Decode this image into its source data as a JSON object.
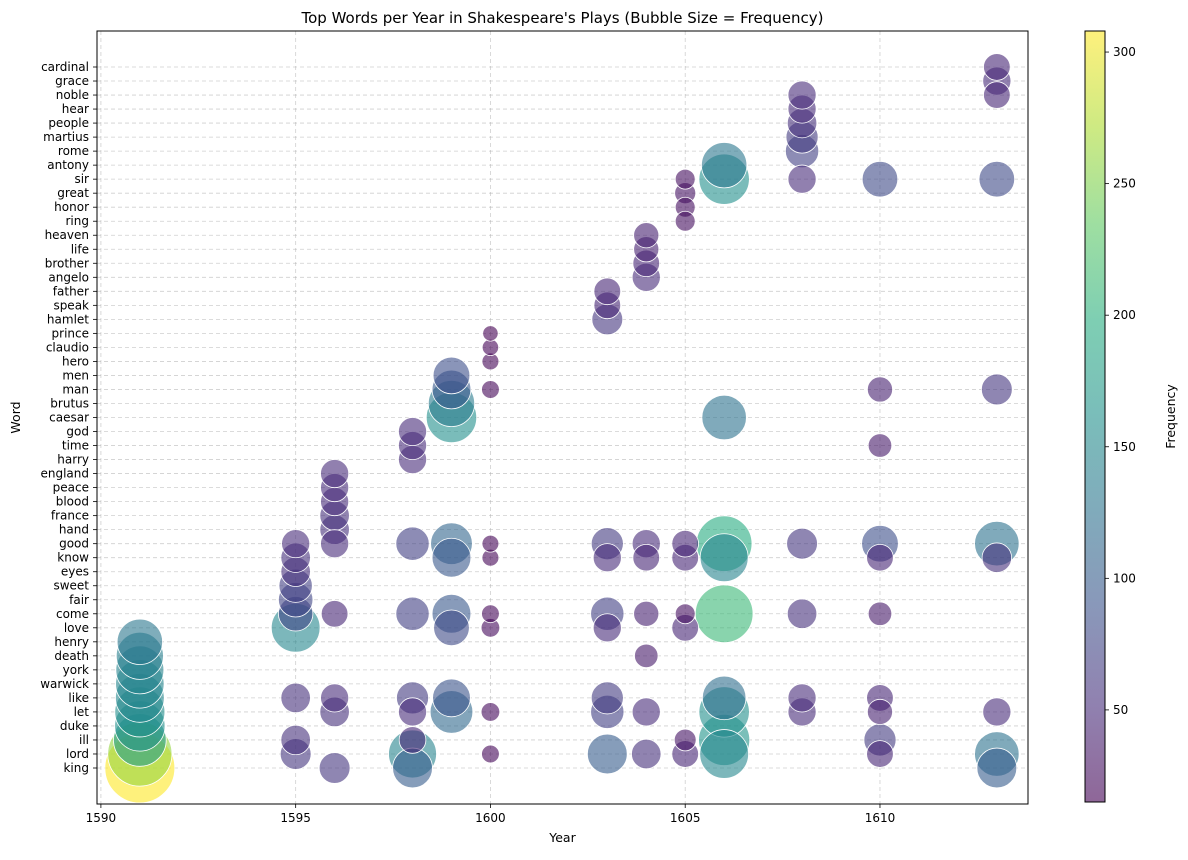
{
  "chart_data": {
    "type": "scatter",
    "title": "Top Words per Year in Shakespeare's Plays (Bubble Size = Frequency)",
    "xlabel": "Year",
    "ylabel": "Word",
    "xlim": [
      1589.9,
      1613.8
    ],
    "x_ticks": [
      "1590",
      "1595",
      "1600",
      "1605",
      "1610"
    ],
    "x_tick_values": [
      1590,
      1595,
      1600,
      1605,
      1610
    ],
    "categories": [
      "king",
      "lord",
      "ill",
      "duke",
      "let",
      "like",
      "warwick",
      "york",
      "death",
      "henry",
      "love",
      "come",
      "fair",
      "sweet",
      "eyes",
      "know",
      "good",
      "hand",
      "france",
      "blood",
      "peace",
      "england",
      "harry",
      "time",
      "god",
      "caesar",
      "brutus",
      "man",
      "men",
      "hero",
      "claudio",
      "prince",
      "hamlet",
      "speak",
      "father",
      "angelo",
      "brother",
      "life",
      "heaven",
      "ring",
      "honor",
      "great",
      "sir",
      "antony",
      "rome",
      "martius",
      "people",
      "hear",
      "noble",
      "grace",
      "cardinal"
    ],
    "colorbar": {
      "label": "Frequency",
      "min": 15,
      "max": 308,
      "ticks": [
        "50",
        "100",
        "150",
        "200",
        "250",
        "300"
      ],
      "tick_values": [
        50,
        100,
        150,
        200,
        250,
        300
      ],
      "colormap": "viridis"
    },
    "grid": true,
    "points": [
      {
        "year": 1591,
        "word": "king",
        "freq": 308
      },
      {
        "year": 1591,
        "word": "lord",
        "freq": 260
      },
      {
        "year": 1591,
        "word": "ill",
        "freq": 175
      },
      {
        "year": 1591,
        "word": "duke",
        "freq": 160
      },
      {
        "year": 1591,
        "word": "let",
        "freq": 158
      },
      {
        "year": 1591,
        "word": "like",
        "freq": 150
      },
      {
        "year": 1591,
        "word": "warwick",
        "freq": 148
      },
      {
        "year": 1591,
        "word": "york",
        "freq": 145
      },
      {
        "year": 1591,
        "word": "death",
        "freq": 140
      },
      {
        "year": 1591,
        "word": "henry",
        "freq": 130
      },
      {
        "year": 1595,
        "word": "lord",
        "freq": 60
      },
      {
        "year": 1595,
        "word": "ill",
        "freq": 55
      },
      {
        "year": 1595,
        "word": "like",
        "freq": 55
      },
      {
        "year": 1595,
        "word": "love",
        "freq": 150
      },
      {
        "year": 1595,
        "word": "come",
        "freq": 75
      },
      {
        "year": 1595,
        "word": "fair",
        "freq": 75
      },
      {
        "year": 1595,
        "word": "sweet",
        "freq": 70
      },
      {
        "year": 1595,
        "word": "eyes",
        "freq": 55
      },
      {
        "year": 1595,
        "word": "know",
        "freq": 55
      },
      {
        "year": 1595,
        "word": "good",
        "freq": 50
      },
      {
        "year": 1596,
        "word": "king",
        "freq": 60
      },
      {
        "year": 1596,
        "word": "let",
        "freq": 55
      },
      {
        "year": 1596,
        "word": "like",
        "freq": 50
      },
      {
        "year": 1596,
        "word": "come",
        "freq": 45
      },
      {
        "year": 1596,
        "word": "good",
        "freq": 50
      },
      {
        "year": 1596,
        "word": "hand",
        "freq": 55
      },
      {
        "year": 1596,
        "word": "france",
        "freq": 55
      },
      {
        "year": 1596,
        "word": "blood",
        "freq": 50
      },
      {
        "year": 1596,
        "word": "peace",
        "freq": 50
      },
      {
        "year": 1596,
        "word": "england",
        "freq": 50
      },
      {
        "year": 1598,
        "word": "king",
        "freq": 100
      },
      {
        "year": 1598,
        "word": "lord",
        "freq": 145
      },
      {
        "year": 1598,
        "word": "ill",
        "freq": 45
      },
      {
        "year": 1598,
        "word": "let",
        "freq": 50
      },
      {
        "year": 1598,
        "word": "like",
        "freq": 65
      },
      {
        "year": 1598,
        "word": "come",
        "freq": 70
      },
      {
        "year": 1598,
        "word": "good",
        "freq": 70
      },
      {
        "year": 1598,
        "word": "harry",
        "freq": 50
      },
      {
        "year": 1598,
        "word": "time",
        "freq": 50
      },
      {
        "year": 1598,
        "word": "god",
        "freq": 50
      },
      {
        "year": 1599,
        "word": "let",
        "freq": 115
      },
      {
        "year": 1599,
        "word": "like",
        "freq": 90
      },
      {
        "year": 1599,
        "word": "love",
        "freq": 80
      },
      {
        "year": 1599,
        "word": "come",
        "freq": 95
      },
      {
        "year": 1599,
        "word": "know",
        "freq": 95
      },
      {
        "year": 1599,
        "word": "good",
        "freq": 110
      },
      {
        "year": 1599,
        "word": "caesar",
        "freq": 160
      },
      {
        "year": 1599,
        "word": "brutus",
        "freq": 135
      },
      {
        "year": 1599,
        "word": "man",
        "freq": 95
      },
      {
        "year": 1599,
        "word": "men",
        "freq": 85
      },
      {
        "year": 1600,
        "word": "lord",
        "freq": 20
      },
      {
        "year": 1600,
        "word": "let",
        "freq": 22
      },
      {
        "year": 1600,
        "word": "love",
        "freq": 22
      },
      {
        "year": 1600,
        "word": "come",
        "freq": 20
      },
      {
        "year": 1600,
        "word": "know",
        "freq": 18
      },
      {
        "year": 1600,
        "word": "good",
        "freq": 18
      },
      {
        "year": 1600,
        "word": "man",
        "freq": 20
      },
      {
        "year": 1600,
        "word": "hero",
        "freq": 18
      },
      {
        "year": 1600,
        "word": "claudio",
        "freq": 17
      },
      {
        "year": 1600,
        "word": "prince",
        "freq": 15
      },
      {
        "year": 1603,
        "word": "lord",
        "freq": 100
      },
      {
        "year": 1603,
        "word": "let",
        "freq": 70
      },
      {
        "year": 1603,
        "word": "like",
        "freq": 65
      },
      {
        "year": 1603,
        "word": "love",
        "freq": 50
      },
      {
        "year": 1603,
        "word": "come",
        "freq": 70
      },
      {
        "year": 1603,
        "word": "know",
        "freq": 50
      },
      {
        "year": 1603,
        "word": "good",
        "freq": 65
      },
      {
        "year": 1603,
        "word": "hamlet",
        "freq": 60
      },
      {
        "year": 1603,
        "word": "speak",
        "freq": 45
      },
      {
        "year": 1603,
        "word": "father",
        "freq": 45
      },
      {
        "year": 1604,
        "word": "lord",
        "freq": 55
      },
      {
        "year": 1604,
        "word": "let",
        "freq": 50
      },
      {
        "year": 1604,
        "word": "death",
        "freq": 35
      },
      {
        "year": 1604,
        "word": "come",
        "freq": 40
      },
      {
        "year": 1604,
        "word": "know",
        "freq": 45
      },
      {
        "year": 1604,
        "word": "good",
        "freq": 50
      },
      {
        "year": 1604,
        "word": "angelo",
        "freq": 50
      },
      {
        "year": 1604,
        "word": "brother",
        "freq": 45
      },
      {
        "year": 1604,
        "word": "life",
        "freq": 40
      },
      {
        "year": 1604,
        "word": "heaven",
        "freq": 40
      },
      {
        "year": 1605,
        "word": "lord",
        "freq": 45
      },
      {
        "year": 1605,
        "word": "ill",
        "freq": 30
      },
      {
        "year": 1605,
        "word": "love",
        "freq": 45
      },
      {
        "year": 1605,
        "word": "come",
        "freq": 25
      },
      {
        "year": 1605,
        "word": "know",
        "freq": 45
      },
      {
        "year": 1605,
        "word": "good",
        "freq": 45
      },
      {
        "year": 1605,
        "word": "sir",
        "freq": 25
      },
      {
        "year": 1605,
        "word": "great",
        "freq": 28
      },
      {
        "year": 1605,
        "word": "honor",
        "freq": 25
      },
      {
        "year": 1605,
        "word": "ring",
        "freq": 25
      },
      {
        "year": 1606,
        "word": "lord",
        "freq": 150
      },
      {
        "year": 1606,
        "word": "ill",
        "freq": 165
      },
      {
        "year": 1606,
        "word": "let",
        "freq": 160
      },
      {
        "year": 1606,
        "word": "like",
        "freq": 120
      },
      {
        "year": 1606,
        "word": "come",
        "freq": 210
      },
      {
        "year": 1606,
        "word": "know",
        "freq": 145
      },
      {
        "year": 1606,
        "word": "good",
        "freq": 195
      },
      {
        "year": 1606,
        "word": "caesar",
        "freq": 125
      },
      {
        "year": 1606,
        "word": "sir",
        "freq": 160
      },
      {
        "year": 1606,
        "word": "antony",
        "freq": 130
      },
      {
        "year": 1608,
        "word": "let",
        "freq": 50
      },
      {
        "year": 1608,
        "word": "like",
        "freq": 50
      },
      {
        "year": 1608,
        "word": "come",
        "freq": 55
      },
      {
        "year": 1608,
        "word": "good",
        "freq": 60
      },
      {
        "year": 1608,
        "word": "sir",
        "freq": 50
      },
      {
        "year": 1608,
        "word": "rome",
        "freq": 70
      },
      {
        "year": 1608,
        "word": "martius",
        "freq": 65
      },
      {
        "year": 1608,
        "word": "people",
        "freq": 55
      },
      {
        "year": 1608,
        "word": "hear",
        "freq": 50
      },
      {
        "year": 1608,
        "word": "noble",
        "freq": 50
      },
      {
        "year": 1610,
        "word": "lord",
        "freq": 45
      },
      {
        "year": 1610,
        "word": "ill",
        "freq": 65
      },
      {
        "year": 1610,
        "word": "let",
        "freq": 40
      },
      {
        "year": 1610,
        "word": "like",
        "freq": 45
      },
      {
        "year": 1610,
        "word": "come",
        "freq": 35
      },
      {
        "year": 1610,
        "word": "know",
        "freq": 45
      },
      {
        "year": 1610,
        "word": "good",
        "freq": 85
      },
      {
        "year": 1610,
        "word": "time",
        "freq": 35
      },
      {
        "year": 1610,
        "word": "man",
        "freq": 40
      },
      {
        "year": 1610,
        "word": "sir",
        "freq": 80
      },
      {
        "year": 1613,
        "word": "king",
        "freq": 100
      },
      {
        "year": 1613,
        "word": "lord",
        "freq": 125
      },
      {
        "year": 1613,
        "word": "let",
        "freq": 50
      },
      {
        "year": 1613,
        "word": "know",
        "freq": 55
      },
      {
        "year": 1613,
        "word": "good",
        "freq": 125
      },
      {
        "year": 1613,
        "word": "man",
        "freq": 60
      },
      {
        "year": 1613,
        "word": "sir",
        "freq": 80
      },
      {
        "year": 1613,
        "word": "noble",
        "freq": 45
      },
      {
        "year": 1613,
        "word": "grace",
        "freq": 50
      },
      {
        "year": 1613,
        "word": "cardinal",
        "freq": 45
      }
    ]
  }
}
